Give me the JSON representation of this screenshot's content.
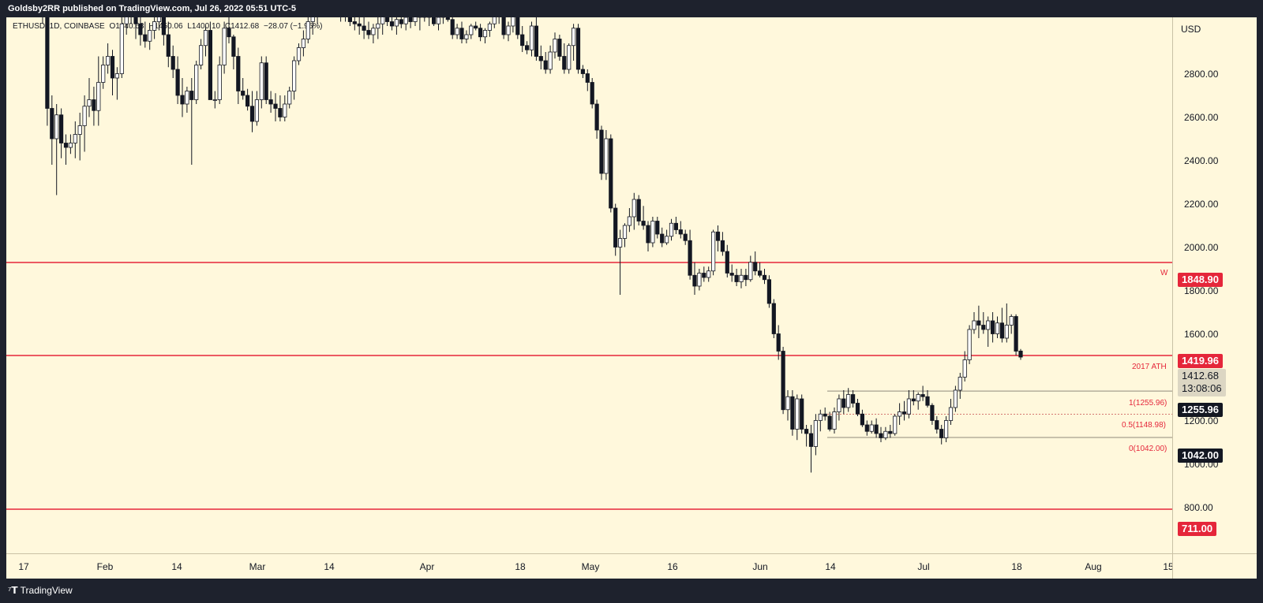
{
  "header": {
    "published": "Goldsby2RR published on TradingView.com, Jul 26, 2022 05:51 UTC-5"
  },
  "footer": {
    "brand": "TradingView"
  },
  "legend": {
    "symbol": "ETHUSD, 1D, COINBASE",
    "open": "O1440.63",
    "high": "H1450.06",
    "low": "L1400.10",
    "close": "C1412.68",
    "change": "−28.07 (−1.95%)"
  },
  "currency": "USD",
  "yticks": [
    "2800.00",
    "2600.00",
    "2400.00",
    "2200.00",
    "2000.00",
    "1800.00",
    "1600.00",
    "1200.00",
    "1000.00",
    "800.00"
  ],
  "xticks": [
    "17",
    "Feb",
    "14",
    "Mar",
    "14",
    "Apr",
    "18",
    "May",
    "16",
    "Jun",
    "14",
    "Jul",
    "18",
    "Aug",
    "15"
  ],
  "price_tags": {
    "w_line": "1848.90",
    "ath": "1419.96",
    "last": "1412.68",
    "countdown": "13:08:06",
    "fib_top": "1255.96",
    "fib_bottom": "1042.00",
    "bottom": "711.00"
  },
  "line_labels": {
    "w": "W",
    "ath": "2017 ATH",
    "fib1": "1(1255.96)",
    "fib05": "0.5(1148.98)",
    "fib0": "0(1042.00)"
  },
  "colors": {
    "background": "#fff8dc",
    "up": "#ffffff",
    "down": "#131722",
    "level_line": "#e5263a"
  },
  "chart_data": {
    "type": "candlestick",
    "symbol": "ETHUSD",
    "timeframe": "1D",
    "ylim": [
      700,
      3000
    ],
    "horizontal_levels": [
      {
        "label": "W",
        "value": 1848.9
      },
      {
        "label": "2017 ATH",
        "value": 1419.96
      },
      {
        "label": "",
        "value": 711.0
      }
    ],
    "fib": [
      {
        "level": "1",
        "value": 1255.96
      },
      {
        "level": "0.5",
        "value": 1148.98
      },
      {
        "level": "0",
        "value": 1042.0
      }
    ],
    "candles": [
      [
        3050,
        3100,
        2950,
        3000
      ],
      [
        3000,
        3050,
        2480,
        2560
      ],
      [
        2560,
        2620,
        2300,
        2420
      ],
      [
        2420,
        2580,
        2160,
        2530
      ],
      [
        2530,
        2560,
        2330,
        2400
      ],
      [
        2400,
        2440,
        2300,
        2380
      ],
      [
        2380,
        2440,
        2350,
        2400
      ],
      [
        2400,
        2500,
        2330,
        2440
      ],
      [
        2440,
        2540,
        2320,
        2480
      ],
      [
        2480,
        2620,
        2360,
        2570
      ],
      [
        2570,
        2700,
        2520,
        2600
      ],
      [
        2600,
        2660,
        2480,
        2550
      ],
      [
        2550,
        2800,
        2480,
        2680
      ],
      [
        2680,
        2800,
        2650,
        2760
      ],
      [
        2760,
        2860,
        2720,
        2800
      ],
      [
        2800,
        2830,
        2620,
        2700
      ],
      [
        2700,
        2750,
        2600,
        2720
      ],
      [
        2720,
        3000,
        2700,
        2950
      ],
      [
        2950,
        3050,
        2900,
        3000
      ],
      [
        3000,
        3080,
        2950,
        3030
      ],
      [
        3030,
        3100,
        2880,
        2950
      ],
      [
        2950,
        3020,
        2850,
        2900
      ],
      [
        2900,
        2960,
        2840,
        2870
      ],
      [
        2870,
        2940,
        2830,
        2920
      ],
      [
        2920,
        3000,
        2880,
        2960
      ],
      [
        2960,
        3040,
        2920,
        2990
      ],
      [
        2990,
        3050,
        2850,
        2900
      ],
      [
        2900,
        2960,
        2750,
        2800
      ],
      [
        2800,
        2850,
        2700,
        2740
      ],
      [
        2740,
        2800,
        2580,
        2620
      ],
      [
        2620,
        2700,
        2520,
        2580
      ],
      [
        2580,
        2660,
        2540,
        2640
      ],
      [
        2640,
        2700,
        2300,
        2600
      ],
      [
        2600,
        2780,
        2580,
        2760
      ],
      [
        2760,
        2880,
        2740,
        2850
      ],
      [
        2850,
        2940,
        2800,
        2920
      ],
      [
        2920,
        2960,
        2600,
        2600
      ],
      [
        2600,
        2640,
        2560,
        2600
      ],
      [
        2600,
        2800,
        2580,
        2760
      ],
      [
        2760,
        2960,
        2720,
        2930
      ],
      [
        2930,
        3000,
        2860,
        2890
      ],
      [
        2890,
        2900,
        2740,
        2800
      ],
      [
        2800,
        2840,
        2580,
        2640
      ],
      [
        2640,
        2700,
        2600,
        2620
      ],
      [
        2620,
        2650,
        2550,
        2570
      ],
      [
        2570,
        2640,
        2450,
        2500
      ],
      [
        2500,
        2640,
        2480,
        2600
      ],
      [
        2600,
        2800,
        2560,
        2770
      ],
      [
        2770,
        2800,
        2580,
        2600
      ],
      [
        2600,
        2640,
        2540,
        2580
      ],
      [
        2580,
        2630,
        2500,
        2560
      ],
      [
        2560,
        2620,
        2500,
        2520
      ],
      [
        2520,
        2620,
        2500,
        2580
      ],
      [
        2580,
        2660,
        2560,
        2640
      ],
      [
        2640,
        2800,
        2600,
        2780
      ],
      [
        2780,
        2860,
        2760,
        2840
      ],
      [
        2840,
        2920,
        2800,
        2880
      ],
      [
        2880,
        3000,
        2860,
        2960
      ],
      [
        2960,
        3060,
        2900,
        3000
      ],
      [
        3000,
        3140,
        2950,
        3100
      ],
      [
        3100,
        3150,
        3020,
        3080
      ],
      [
        3080,
        3120,
        3000,
        3060
      ],
      [
        3060,
        3100,
        3010,
        3040
      ],
      [
        3040,
        3080,
        2980,
        3020
      ],
      [
        3020,
        3060,
        2960,
        3000
      ],
      [
        3000,
        3040,
        2960,
        2990
      ],
      [
        2990,
        3020,
        2940,
        2960
      ],
      [
        2960,
        3010,
        2920,
        2950
      ],
      [
        2950,
        3000,
        2900,
        2940
      ],
      [
        2940,
        2980,
        2880,
        2920
      ],
      [
        2920,
        2960,
        2880,
        2900
      ],
      [
        2900,
        2950,
        2860,
        2930
      ],
      [
        2930,
        2980,
        2880,
        2950
      ],
      [
        2950,
        3020,
        2900,
        2990
      ],
      [
        2990,
        3030,
        2940,
        2960
      ],
      [
        2960,
        3000,
        2920,
        2940
      ],
      [
        2940,
        2990,
        2900,
        2970
      ],
      [
        2970,
        3010,
        2930,
        2950
      ],
      [
        2950,
        3000,
        2920,
        2980
      ],
      [
        2980,
        3040,
        2930,
        2960
      ],
      [
        2960,
        3030,
        2940,
        2990
      ],
      [
        2990,
        3040,
        2920,
        2980
      ],
      [
        2980,
        3020,
        2960,
        3010
      ],
      [
        3010,
        3030,
        2940,
        2980
      ],
      [
        2980,
        3000,
        2940,
        2950
      ],
      [
        2950,
        2990,
        2920,
        2980
      ],
      [
        2980,
        3020,
        2950,
        3000
      ],
      [
        3000,
        3010,
        2960,
        2970
      ],
      [
        2970,
        3000,
        2880,
        2900
      ],
      [
        2900,
        2950,
        2880,
        2930
      ],
      [
        2930,
        2960,
        2860,
        2880
      ],
      [
        2880,
        2920,
        2860,
        2900
      ],
      [
        2900,
        2950,
        2880,
        2940
      ],
      [
        2940,
        2960,
        2920,
        2930
      ],
      [
        2930,
        2950,
        2870,
        2890
      ],
      [
        2890,
        2930,
        2860,
        2920
      ],
      [
        2920,
        2960,
        2890,
        2950
      ],
      [
        2950,
        3000,
        2930,
        2990
      ],
      [
        2990,
        3030,
        2950,
        3010
      ],
      [
        3010,
        3040,
        2880,
        2900
      ],
      [
        2900,
        2960,
        2870,
        2940
      ],
      [
        2940,
        3010,
        2910,
        2990
      ],
      [
        2990,
        3010,
        2880,
        2900
      ],
      [
        2900,
        2940,
        2820,
        2850
      ],
      [
        2850,
        2870,
        2810,
        2830
      ],
      [
        2830,
        2960,
        2800,
        2940
      ],
      [
        2940,
        2980,
        2780,
        2800
      ],
      [
        2800,
        2850,
        2740,
        2780
      ],
      [
        2780,
        2820,
        2720,
        2740
      ],
      [
        2740,
        2850,
        2720,
        2820
      ],
      [
        2820,
        2910,
        2790,
        2880
      ],
      [
        2880,
        2900,
        2780,
        2800
      ],
      [
        2800,
        2860,
        2720,
        2740
      ],
      [
        2740,
        2860,
        2720,
        2850
      ],
      [
        2850,
        2950,
        2780,
        2930
      ],
      [
        2930,
        2950,
        2720,
        2740
      ],
      [
        2740,
        2760,
        2700,
        2720
      ],
      [
        2720,
        2740,
        2640,
        2680
      ],
      [
        2680,
        2700,
        2560,
        2580
      ],
      [
        2580,
        2600,
        2420,
        2460
      ],
      [
        2460,
        2480,
        2230,
        2260
      ],
      [
        2260,
        2460,
        2230,
        2420
      ],
      [
        2420,
        2440,
        2080,
        2100
      ],
      [
        2100,
        2120,
        1880,
        1920
      ],
      [
        1920,
        2000,
        1700,
        1960
      ],
      [
        1960,
        2030,
        1920,
        2020
      ],
      [
        2020,
        2100,
        1990,
        2060
      ],
      [
        2060,
        2170,
        2000,
        2140
      ],
      [
        2140,
        2160,
        2020,
        2040
      ],
      [
        2040,
        2110,
        2000,
        2020
      ],
      [
        2020,
        2040,
        1900,
        1940
      ],
      [
        1940,
        2060,
        1920,
        2040
      ],
      [
        2040,
        2060,
        1960,
        1980
      ],
      [
        1980,
        2010,
        1920,
        1940
      ],
      [
        1940,
        2000,
        1930,
        1970
      ],
      [
        1970,
        2050,
        1950,
        2030
      ],
      [
        2030,
        2060,
        1980,
        2000
      ],
      [
        2000,
        2040,
        1960,
        1980
      ],
      [
        1980,
        2000,
        1930,
        1950
      ],
      [
        1950,
        2000,
        1770,
        1790
      ],
      [
        1790,
        1850,
        1700,
        1740
      ],
      [
        1740,
        1820,
        1720,
        1800
      ],
      [
        1800,
        1830,
        1760,
        1780
      ],
      [
        1780,
        1830,
        1760,
        1810
      ],
      [
        1810,
        2000,
        1790,
        1990
      ],
      [
        1990,
        2020,
        1900,
        1950
      ],
      [
        1950,
        1990,
        1880,
        1900
      ],
      [
        1900,
        1930,
        1780,
        1800
      ],
      [
        1800,
        1840,
        1760,
        1790
      ],
      [
        1790,
        1820,
        1740,
        1760
      ],
      [
        1760,
        1820,
        1730,
        1790
      ],
      [
        1790,
        1820,
        1740,
        1770
      ],
      [
        1770,
        1880,
        1760,
        1850
      ],
      [
        1850,
        1900,
        1790,
        1810
      ],
      [
        1810,
        1850,
        1780,
        1790
      ],
      [
        1790,
        1820,
        1750,
        1770
      ],
      [
        1770,
        1790,
        1640,
        1660
      ],
      [
        1660,
        1680,
        1500,
        1520
      ],
      [
        1520,
        1560,
        1400,
        1440
      ],
      [
        1440,
        1460,
        1150,
        1170
      ],
      [
        1170,
        1260,
        1120,
        1230
      ],
      [
        1230,
        1260,
        1050,
        1080
      ],
      [
        1080,
        1240,
        1030,
        1220
      ],
      [
        1220,
        1240,
        1060,
        1080
      ],
      [
        1080,
        1100,
        1000,
        1060
      ],
      [
        1060,
        1100,
        880,
        1000
      ],
      [
        1000,
        1150,
        960,
        1120
      ],
      [
        1120,
        1170,
        1070,
        1150
      ],
      [
        1150,
        1180,
        1120,
        1140
      ],
      [
        1140,
        1160,
        1070,
        1080
      ],
      [
        1080,
        1180,
        1060,
        1160
      ],
      [
        1160,
        1240,
        1120,
        1220
      ],
      [
        1220,
        1260,
        1150,
        1180
      ],
      [
        1180,
        1270,
        1160,
        1240
      ],
      [
        1240,
        1260,
        1180,
        1200
      ],
      [
        1200,
        1220,
        1140,
        1150
      ],
      [
        1150,
        1170,
        1090,
        1100
      ],
      [
        1100,
        1120,
        1050,
        1070
      ],
      [
        1070,
        1120,
        1060,
        1100
      ],
      [
        1100,
        1130,
        1040,
        1060
      ],
      [
        1060,
        1090,
        1020,
        1040
      ],
      [
        1040,
        1090,
        1030,
        1070
      ],
      [
        1070,
        1100,
        1040,
        1060
      ],
      [
        1060,
        1150,
        1050,
        1140
      ],
      [
        1140,
        1200,
        1100,
        1160
      ],
      [
        1160,
        1210,
        1120,
        1150
      ],
      [
        1150,
        1260,
        1130,
        1220
      ],
      [
        1220,
        1260,
        1190,
        1210
      ],
      [
        1210,
        1250,
        1170,
        1240
      ],
      [
        1240,
        1280,
        1210,
        1230
      ],
      [
        1230,
        1260,
        1180,
        1190
      ],
      [
        1190,
        1200,
        1100,
        1120
      ],
      [
        1120,
        1140,
        1060,
        1080
      ],
      [
        1080,
        1100,
        1010,
        1040
      ],
      [
        1040,
        1140,
        1020,
        1120
      ],
      [
        1120,
        1220,
        1100,
        1180
      ],
      [
        1180,
        1280,
        1160,
        1260
      ],
      [
        1260,
        1340,
        1220,
        1320
      ],
      [
        1320,
        1440,
        1300,
        1400
      ],
      [
        1400,
        1560,
        1380,
        1540
      ],
      [
        1540,
        1620,
        1520,
        1580
      ],
      [
        1580,
        1650,
        1500,
        1560
      ],
      [
        1560,
        1620,
        1520,
        1540
      ],
      [
        1540,
        1600,
        1460,
        1580
      ],
      [
        1580,
        1620,
        1480,
        1520
      ],
      [
        1520,
        1600,
        1500,
        1570
      ],
      [
        1570,
        1640,
        1480,
        1500
      ],
      [
        1500,
        1660,
        1480,
        1560
      ],
      [
        1560,
        1610,
        1520,
        1600
      ],
      [
        1600,
        1610,
        1420,
        1440
      ],
      [
        1440.63,
        1450.06,
        1400.1,
        1412.68
      ]
    ]
  }
}
